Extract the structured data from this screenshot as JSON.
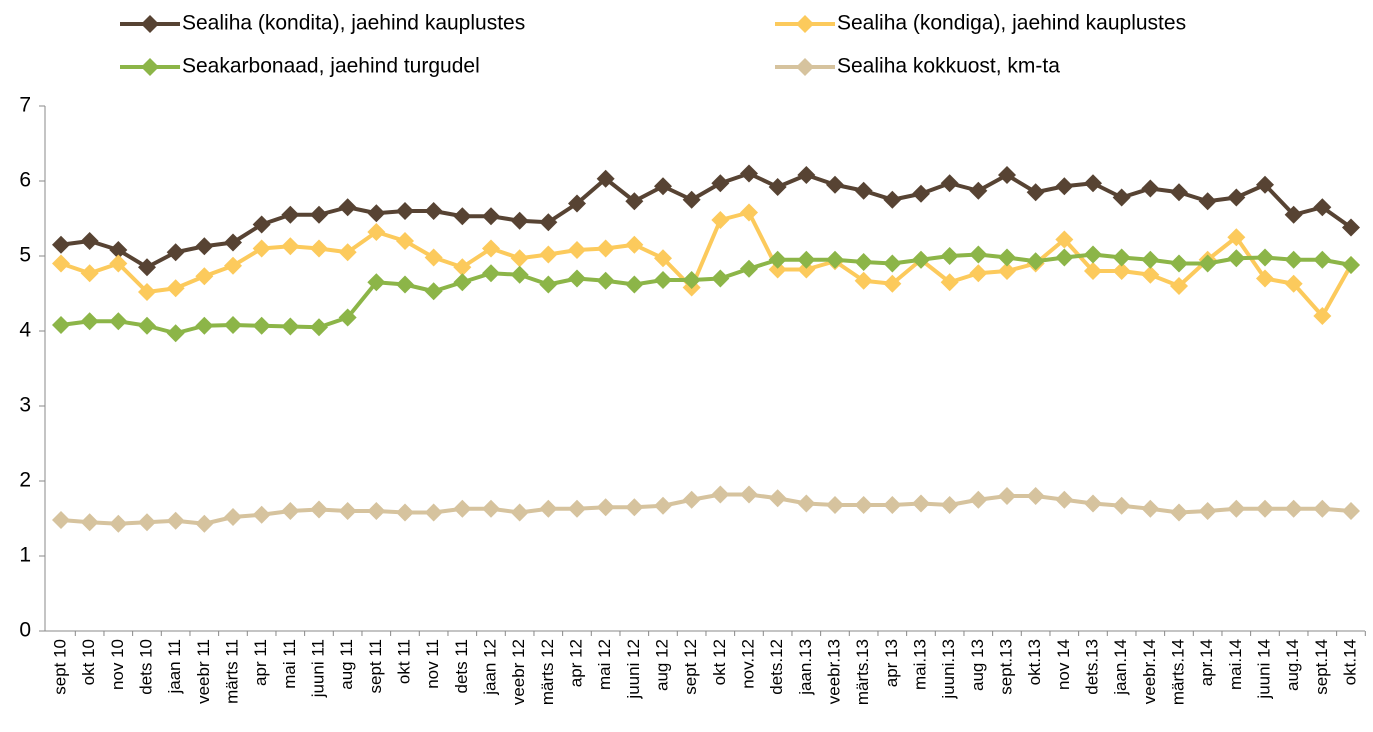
{
  "chart_data": {
    "type": "line",
    "categories": [
      "sept 10",
      "okt 10",
      "nov 10",
      "dets 10",
      "jaan 11",
      "veebr 11",
      "märts 11",
      "apr 11",
      "mai 11",
      "juuni 11",
      "aug 11",
      "sept 11",
      "okt 11",
      "nov 11",
      "dets 11",
      "jaan 12",
      "veebr 12",
      "märts 12",
      "apr 12",
      "mai 12",
      "juuni 12",
      "aug 12",
      "sept 12",
      "okt 12",
      "nov.12",
      "dets.12",
      "jaan.13",
      "veebr.13",
      "märts.13",
      "apr 13",
      "mai.13",
      "juuni.13",
      "aug 13",
      "sept.13",
      "okt.13",
      "nov 14",
      "dets.13",
      "jaan.14",
      "veebr.14",
      "märts.14",
      "apr.14",
      "mai.14",
      "juuni 14",
      "aug.14",
      "sept.14",
      "okt.14"
    ],
    "series": [
      {
        "name": "Sealiha (kondita), jaehind kauplustes",
        "color": "#574333",
        "values": [
          5.15,
          5.2,
          5.08,
          4.85,
          5.05,
          5.13,
          5.18,
          5.42,
          5.55,
          5.55,
          5.65,
          5.57,
          5.6,
          5.6,
          5.53,
          5.53,
          5.47,
          5.45,
          5.7,
          6.03,
          5.73,
          5.93,
          5.75,
          5.97,
          6.1,
          5.92,
          6.08,
          5.95,
          5.87,
          5.75,
          5.83,
          5.97,
          5.87,
          6.08,
          5.85,
          5.93,
          5.97,
          5.78,
          5.9,
          5.85,
          5.73,
          5.78,
          5.95,
          5.55,
          5.65,
          5.38
        ]
      },
      {
        "name": "Sealiha (kondiga), jaehind kauplustes",
        "color": "#fcca5c",
        "values": [
          4.9,
          4.77,
          4.9,
          4.52,
          4.57,
          4.73,
          4.87,
          5.1,
          5.13,
          5.1,
          5.05,
          5.32,
          5.2,
          4.98,
          4.85,
          5.1,
          4.97,
          5.02,
          5.08,
          5.1,
          5.15,
          4.97,
          4.58,
          5.48,
          5.58,
          4.82,
          4.82,
          4.93,
          4.67,
          4.63,
          4.95,
          4.65,
          4.77,
          4.8,
          4.9,
          5.22,
          4.8,
          4.8,
          4.75,
          4.6,
          4.95,
          5.25,
          4.7,
          4.63,
          4.2,
          4.88
        ]
      },
      {
        "name": "Seakarbonaad, jaehind turgudel",
        "color": "#8cb548",
        "values": [
          4.08,
          4.13,
          4.13,
          4.07,
          3.97,
          4.07,
          4.08,
          4.07,
          4.06,
          4.05,
          4.18,
          4.65,
          4.62,
          4.53,
          4.65,
          4.77,
          4.75,
          4.62,
          4.7,
          4.67,
          4.62,
          4.68,
          4.68,
          4.7,
          4.83,
          4.95,
          4.95,
          4.95,
          4.92,
          4.9,
          4.95,
          5.0,
          5.02,
          4.98,
          4.93,
          4.98,
          5.02,
          4.98,
          4.95,
          4.9,
          4.9,
          4.97,
          4.98,
          4.95,
          4.95,
          4.88
        ]
      },
      {
        "name": "Sealiha kokkuost, km-ta",
        "color": "#d6c39e",
        "values": [
          1.48,
          1.45,
          1.43,
          1.45,
          1.47,
          1.43,
          1.52,
          1.55,
          1.6,
          1.62,
          1.6,
          1.6,
          1.58,
          1.58,
          1.63,
          1.63,
          1.58,
          1.63,
          1.63,
          1.65,
          1.65,
          1.67,
          1.75,
          1.82,
          1.82,
          1.77,
          1.7,
          1.68,
          1.68,
          1.68,
          1.7,
          1.68,
          1.75,
          1.8,
          1.8,
          1.75,
          1.7,
          1.67,
          1.63,
          1.58,
          1.6,
          1.63,
          1.63,
          1.63,
          1.63,
          1.6
        ]
      }
    ],
    "ylim": [
      0,
      7
    ],
    "yticks": [
      0,
      1,
      2,
      3,
      4,
      5,
      6,
      7
    ],
    "grid": false,
    "legend": "top"
  }
}
